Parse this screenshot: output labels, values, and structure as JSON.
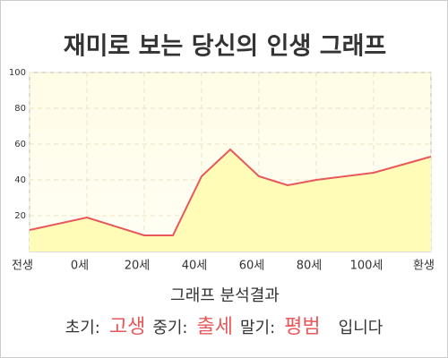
{
  "chart_data": {
    "type": "area",
    "title": "재미로 보는 당신의 인생 그래프",
    "x": [
      -20,
      0,
      20,
      30,
      40,
      50,
      60,
      70,
      80,
      100,
      120
    ],
    "values": [
      12,
      19,
      9,
      9,
      42,
      57,
      42,
      37,
      40,
      44,
      53
    ],
    "color": "#e8585a",
    "fill": "#fffcb8",
    "xlim": [
      -20,
      120
    ],
    "xticks": [
      {
        "value": -20,
        "label": "전생"
      },
      {
        "value": 0,
        "label": "0세"
      },
      {
        "value": 20,
        "label": "20세"
      },
      {
        "value": 40,
        "label": "40세"
      },
      {
        "value": 60,
        "label": "60세"
      },
      {
        "value": 80,
        "label": "80세"
      },
      {
        "value": 100,
        "label": "100세"
      },
      {
        "value": 120,
        "label": "환생"
      }
    ],
    "ylim": [
      0,
      100
    ],
    "yticks": [
      20,
      40,
      60,
      80,
      100
    ],
    "grid": true
  },
  "analysis": {
    "heading": "그래프 분석결과",
    "items": [
      {
        "label": "초기:",
        "value": "고생"
      },
      {
        "label": "중기:",
        "value": "출세"
      },
      {
        "label": "말기:",
        "value": "평범"
      }
    ],
    "suffix": "입니다"
  }
}
